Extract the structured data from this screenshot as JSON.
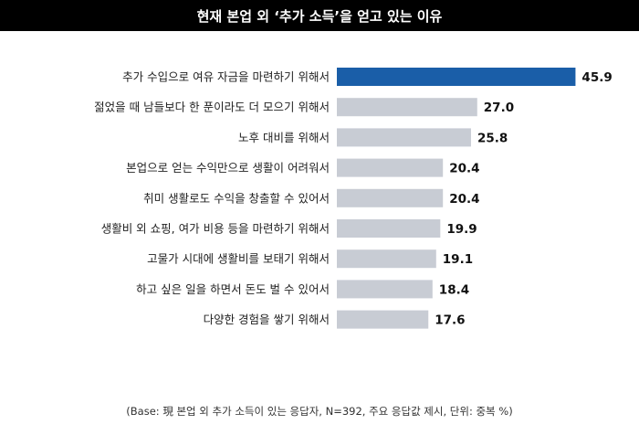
{
  "title": "현재 본업 외 ‘추가 소득’을 얻고 있는 이유",
  "footnote": "(Base: 現 본업 외 추가 소득이 있는 응답자, N=392, 주요 응답값 제시, 단위: 중복 %)",
  "colors": {
    "highlight": "#1a5ea8",
    "bar": "#c8ccd4",
    "title_bg": "#000000",
    "title_text": "#ffffff"
  },
  "chart_data": {
    "type": "bar",
    "orientation": "horizontal",
    "categories": [
      "추가 수입으로 여유 자금을 마련하기 위해서",
      "젊었을 때 남들보다 한 푼이라도 더 모으기 위해서",
      "노후 대비를 위해서",
      "본업으로 얻는 수익만으로 생활이 어려워서",
      "취미 생활로도 수익을 창출할 수 있어서",
      "생활비 외 쇼핑, 여가 비용 등을 마련하기 위해서",
      "고물가 시대에 생활비를 보태기 위해서",
      "하고 싶은 일을 하면서 돈도 벌 수 있어서",
      "다양한 경험을 쌓기 위해서"
    ],
    "values": [
      45.9,
      27.0,
      25.8,
      20.4,
      20.4,
      19.9,
      19.1,
      18.4,
      17.6
    ],
    "value_labels": [
      "45.9",
      "27.0",
      "25.8",
      "20.4",
      "20.4",
      "19.9",
      "19.1",
      "18.4",
      "17.6"
    ],
    "highlighted_index": 0,
    "xlim": [
      0,
      46
    ],
    "grid": false,
    "legend": "none"
  }
}
